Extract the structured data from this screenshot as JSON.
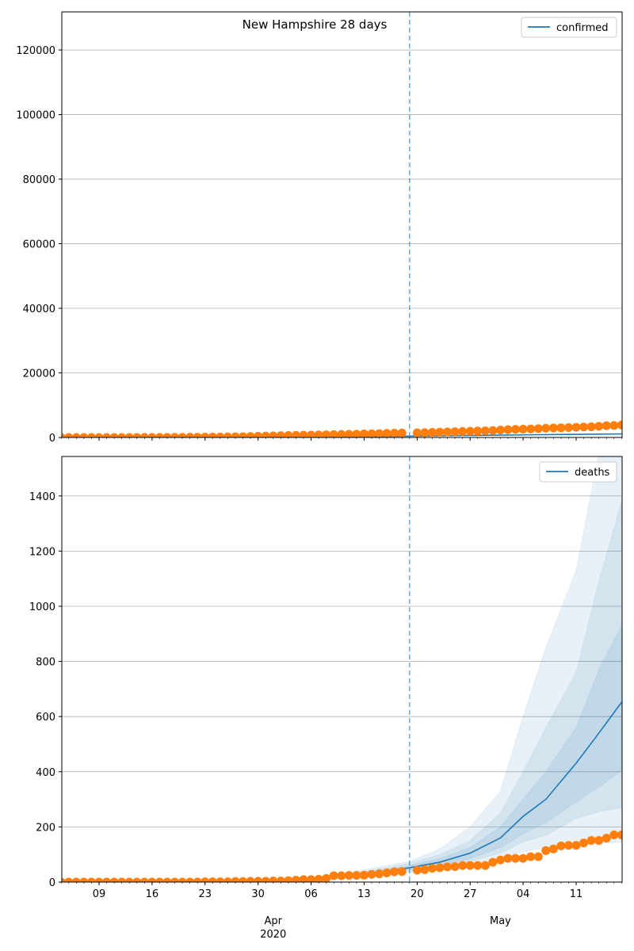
{
  "chart_data": [
    {
      "type": "scatter",
      "title": "New Hampshire 28 days",
      "legend": [
        "confirmed"
      ],
      "legend_position": "top-right",
      "ylim": [
        0,
        131800
      ],
      "yticks": [
        "0",
        "20000",
        "40000",
        "60000",
        "80000",
        "100000",
        "120000"
      ],
      "ytick_values": [
        0,
        20000,
        40000,
        60000,
        80000,
        100000,
        120000
      ],
      "start_date": "2020-03-04",
      "forecast_start": "2020-04-19",
      "observed_dates_skip": [
        "2020-04-19"
      ],
      "observed": [
        2,
        2,
        4,
        4,
        5,
        6,
        6,
        7,
        7,
        11,
        13,
        17,
        26,
        39,
        44,
        55,
        65,
        78,
        101,
        108,
        137,
        158,
        187,
        214,
        258,
        314,
        367,
        415,
        479,
        540,
        621,
        669,
        715,
        747,
        788,
        819,
        885,
        929,
        985,
        1020,
        1091,
        1139,
        1211,
        1287,
        1342,
        1390,
        null,
        1447,
        1491,
        1588,
        1670,
        1720,
        1787,
        1864,
        1938,
        2010,
        2054,
        2146,
        2310,
        2429,
        2518,
        2588,
        2636,
        2740,
        2843,
        2947,
        3011,
        3071,
        3160,
        3239,
        3299,
        3464,
        3652,
        3721,
        3868
      ],
      "model_days": [
        33,
        40,
        46,
        50,
        54,
        58,
        61,
        64,
        68,
        71,
        74
      ],
      "median": [
        100,
        250,
        420,
        520,
        620,
        720,
        800,
        880,
        960,
        1030,
        1100
      ]
    },
    {
      "type": "scatter",
      "legend": [
        "deaths"
      ],
      "legend_position": "top-right",
      "ylim": [
        0,
        1543
      ],
      "yticks": [
        "0",
        "200",
        "400",
        "600",
        "800",
        "1000",
        "1200",
        "1400"
      ],
      "ytick_values": [
        0,
        200,
        400,
        600,
        800,
        1000,
        1200,
        1400
      ],
      "observed": [
        0,
        0,
        0,
        0,
        0,
        0,
        0,
        0,
        0,
        0,
        0,
        0,
        0,
        0,
        0,
        0,
        0,
        0,
        0,
        1,
        1,
        1,
        1,
        2,
        2,
        3,
        3,
        3,
        4,
        4,
        5,
        7,
        9,
        9,
        10,
        13,
        23,
        23,
        24,
        24,
        25,
        28,
        30,
        33,
        37,
        38,
        null,
        43,
        45,
        50,
        52,
        55,
        56,
        60,
        60,
        60,
        60,
        72,
        80,
        86,
        86,
        86,
        92,
        92,
        114,
        120,
        131,
        133,
        133,
        142,
        151,
        151,
        159,
        171,
        171
      ],
      "model_days": [
        33,
        40,
        46,
        50,
        54,
        58,
        61,
        64,
        68,
        71,
        74
      ],
      "median": [
        10,
        28,
        52,
        72,
        105,
        160,
        238,
        300,
        431,
        540,
        652
      ],
      "bands": [
        {
          "lo": [
            6,
            18,
            35,
            48,
            65,
            85,
            110,
            125,
            135,
            140,
            145
          ],
          "hi": [
            15,
            45,
            75,
            120,
            200,
            330,
            600,
            850,
            1130,
            1560,
            2000
          ]
        },
        {
          "lo": [
            8,
            22,
            40,
            55,
            75,
            105,
            145,
            170,
            230,
            255,
            270
          ],
          "hi": [
            13,
            38,
            68,
            100,
            150,
            250,
            400,
            560,
            760,
            1090,
            1380
          ]
        },
        {
          "lo": [
            9,
            25,
            45,
            60,
            85,
            125,
            175,
            215,
            290,
            345,
            405
          ],
          "hi": [
            11,
            32,
            60,
            85,
            125,
            200,
            300,
            400,
            560,
            770,
            930
          ]
        }
      ]
    }
  ],
  "xaxis": {
    "tick_labels": [
      "09",
      "16",
      "23",
      "30",
      "06",
      "13",
      "20",
      "27",
      "04",
      "11"
    ],
    "tick_days": [
      5,
      12,
      19,
      26,
      33,
      40,
      47,
      54,
      61,
      68
    ],
    "months": [
      {
        "label": "Apr",
        "day": 28
      },
      {
        "label": "May",
        "day": 58
      }
    ],
    "year": "2020",
    "n_days": 75
  },
  "colors": {
    "line": "#1f77b4",
    "points": "#ff7f0e",
    "grid": "#b0b0b0"
  }
}
